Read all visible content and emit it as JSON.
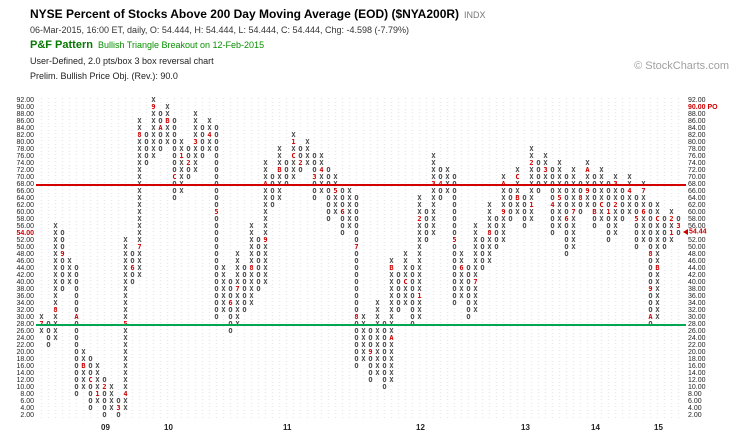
{
  "header": {
    "title": "NYSE Percent of Stocks Above 200 Day Moving Average (EOD) ($NYA200R)",
    "symbol_type": "INDX",
    "quote_line": "06-Mar-2015, 16:00 ET, daily, O: 54.444, H: 54.444, L: 54.444, C: 54.444, Chg: -4.598 (-7.79%)",
    "pattern_label": "P&F Pattern",
    "pattern_text": "Bullish Triangle Breakout on 12-Feb-2015",
    "settings_line": "User-Defined, 2.0 pts/box 3 box reversal chart",
    "objective_line": "Prelim. Bullish Price Obj. (Rev.): 90.0",
    "watermark": "© StockCharts.com"
  },
  "chart_data": {
    "type": "pnf",
    "title": "NYSE Percent of Stocks Above 200 Day Moving Average (EOD) ($NYA200R)",
    "box_size": 2.0,
    "reversal": 3,
    "y_axis": {
      "min": 2,
      "max": 92,
      "step": 2
    },
    "hlines": [
      {
        "name": "resistance-line",
        "value": 68,
        "color": "#d40000"
      },
      {
        "name": "support-line",
        "value": 28,
        "color": "#00a651"
      }
    ],
    "last_price": 54.44,
    "last_price_label": "54.44",
    "price_objective_value": 90,
    "price_objective_label": "90.00 PO",
    "left_highlight_value": 54,
    "x_axis_years": [
      {
        "label": "09",
        "col": 9
      },
      {
        "label": "10",
        "col": 18
      },
      {
        "label": "11",
        "col": 35
      },
      {
        "label": "12",
        "col": 54
      },
      {
        "label": "13",
        "col": 69
      },
      {
        "label": "14",
        "col": 79
      },
      {
        "label": "15",
        "col": 88
      }
    ],
    "columns": [
      {
        "t": "X",
        "from": 26,
        "to": 30,
        "m": {
          "28": "7"
        }
      },
      {
        "t": "O",
        "from": 22,
        "to": 28
      },
      {
        "t": "X",
        "from": 24,
        "to": 56,
        "m": {
          "32": "8"
        }
      },
      {
        "t": "O",
        "from": 38,
        "to": 54,
        "m": {
          "48": "9"
        }
      },
      {
        "t": "X",
        "from": 40,
        "to": 46
      },
      {
        "t": "O",
        "from": 8,
        "to": 44,
        "m": {
          "30": "A"
        }
      },
      {
        "t": "X",
        "from": 10,
        "to": 20,
        "m": {
          "16": "B"
        }
      },
      {
        "t": "O",
        "from": 4,
        "to": 18,
        "m": {
          "12": "C"
        }
      },
      {
        "t": "X",
        "from": 6,
        "to": 16,
        "m": {
          "8": "1"
        }
      },
      {
        "t": "O",
        "from": 2,
        "to": 12,
        "m": {
          "10": "2"
        }
      },
      {
        "t": "X",
        "from": 4,
        "to": 10
      },
      {
        "t": "O",
        "from": 2,
        "to": 6,
        "m": {
          "4": "3"
        }
      },
      {
        "t": "X",
        "from": 4,
        "to": 52,
        "m": {
          "8": "4",
          "28": "5"
        }
      },
      {
        "t": "O",
        "from": 40,
        "to": 48,
        "m": {
          "44": "6"
        }
      },
      {
        "t": "X",
        "from": 42,
        "to": 86,
        "m": {
          "50": "7",
          "82": "8"
        }
      },
      {
        "t": "O",
        "from": 74,
        "to": 82
      },
      {
        "t": "X",
        "from": 76,
        "to": 92,
        "m": {
          "90": "9"
        }
      },
      {
        "t": "O",
        "from": 78,
        "to": 88,
        "m": {
          "84": "A"
        }
      },
      {
        "t": "X",
        "from": 80,
        "to": 90,
        "m": {
          "86": "B"
        }
      },
      {
        "t": "O",
        "from": 64,
        "to": 86,
        "m": {
          "70": "C"
        }
      },
      {
        "t": "X",
        "from": 66,
        "to": 80,
        "m": {
          "76": "1"
        }
      },
      {
        "t": "O",
        "from": 70,
        "to": 78,
        "m": {
          "74": "2"
        }
      },
      {
        "t": "X",
        "from": 72,
        "to": 88,
        "m": {
          "80": "3"
        }
      },
      {
        "t": "O",
        "from": 76,
        "to": 84
      },
      {
        "t": "X",
        "from": 78,
        "to": 86,
        "m": {
          "82": "4"
        }
      },
      {
        "t": "O",
        "from": 30,
        "to": 84,
        "m": {
          "60": "5"
        }
      },
      {
        "t": "X",
        "from": 32,
        "to": 44
      },
      {
        "t": "O",
        "from": 26,
        "to": 40,
        "m": {
          "34": "6"
        }
      },
      {
        "t": "X",
        "from": 28,
        "to": 48,
        "m": {
          "38": "7"
        }
      },
      {
        "t": "O",
        "from": 32,
        "to": 44
      },
      {
        "t": "X",
        "from": 34,
        "to": 56,
        "m": {
          "44": "8"
        }
      },
      {
        "t": "O",
        "from": 38,
        "to": 52
      },
      {
        "t": "X",
        "from": 40,
        "to": 74,
        "m": {
          "52": "9",
          "68": "A"
        }
      },
      {
        "t": "O",
        "from": 62,
        "to": 70
      },
      {
        "t": "X",
        "from": 64,
        "to": 78,
        "m": {
          "72": "B"
        }
      },
      {
        "t": "O",
        "from": 68,
        "to": 74
      },
      {
        "t": "X",
        "from": 70,
        "to": 82,
        "m": {
          "76": "C",
          "80": "1"
        }
      },
      {
        "t": "O",
        "from": 72,
        "to": 78,
        "m": {
          "74": "2"
        }
      },
      {
        "t": "X",
        "from": 74,
        "to": 80
      },
      {
        "t": "O",
        "from": 64,
        "to": 76,
        "m": {
          "70": "3"
        }
      },
      {
        "t": "X",
        "from": 66,
        "to": 76,
        "m": {
          "72": "4"
        }
      },
      {
        "t": "O",
        "from": 58,
        "to": 72
      },
      {
        "t": "X",
        "from": 60,
        "to": 70,
        "m": {
          "66": "5"
        }
      },
      {
        "t": "O",
        "from": 54,
        "to": 66,
        "m": {
          "60": "6"
        }
      },
      {
        "t": "X",
        "from": 56,
        "to": 66
      },
      {
        "t": "O",
        "from": 16,
        "to": 64,
        "m": {
          "50": "7",
          "30": "8"
        }
      },
      {
        "t": "X",
        "from": 18,
        "to": 30
      },
      {
        "t": "O",
        "from": 12,
        "to": 26,
        "m": {
          "20": "9"
        }
      },
      {
        "t": "X",
        "from": 14,
        "to": 34
      },
      {
        "t": "O",
        "from": 10,
        "to": 28
      },
      {
        "t": "X",
        "from": 12,
        "to": 46,
        "m": {
          "24": "A",
          "44": "B"
        }
      },
      {
        "t": "O",
        "from": 32,
        "to": 42
      },
      {
        "t": "X",
        "from": 34,
        "to": 48,
        "m": {
          "40": "C"
        }
      },
      {
        "t": "O",
        "from": 28,
        "to": 44
      },
      {
        "t": "X",
        "from": 30,
        "to": 64,
        "m": {
          "36": "1",
          "58": "2"
        }
      },
      {
        "t": "O",
        "from": 52,
        "to": 60
      },
      {
        "t": "X",
        "from": 54,
        "to": 76,
        "m": {
          "68": "3"
        }
      },
      {
        "t": "O",
        "from": 64,
        "to": 72,
        "m": {
          "68": "4"
        }
      },
      {
        "t": "X",
        "from": 66,
        "to": 72
      },
      {
        "t": "O",
        "from": 34,
        "to": 70,
        "m": {
          "52": "5"
        }
      },
      {
        "t": "X",
        "from": 36,
        "to": 48,
        "m": {
          "44": "6"
        }
      },
      {
        "t": "O",
        "from": 30,
        "to": 44
      },
      {
        "t": "X",
        "from": 32,
        "to": 56,
        "m": {
          "40": "7"
        }
      },
      {
        "t": "O",
        "from": 44,
        "to": 52
      },
      {
        "t": "X",
        "from": 46,
        "to": 62,
        "m": {
          "54": "8"
        }
      },
      {
        "t": "O",
        "from": 50,
        "to": 58
      },
      {
        "t": "X",
        "from": 52,
        "to": 70,
        "m": {
          "60": "9",
          "68": "A"
        }
      },
      {
        "t": "O",
        "from": 58,
        "to": 66
      },
      {
        "t": "X",
        "from": 60,
        "to": 72,
        "m": {
          "64": "B",
          "70": "C"
        }
      },
      {
        "t": "O",
        "from": 56,
        "to": 64
      },
      {
        "t": "X",
        "from": 58,
        "to": 78,
        "m": {
          "62": "1",
          "74": "2"
        }
      },
      {
        "t": "O",
        "from": 66,
        "to": 74
      },
      {
        "t": "X",
        "from": 68,
        "to": 76,
        "m": {
          "72": "3"
        }
      },
      {
        "t": "O",
        "from": 54,
        "to": 72,
        "m": {
          "62": "4"
        }
      },
      {
        "t": "X",
        "from": 56,
        "to": 74,
        "m": {
          "64": "5"
        }
      },
      {
        "t": "O",
        "from": 48,
        "to": 70,
        "m": {
          "58": "6"
        }
      },
      {
        "t": "X",
        "from": 50,
        "to": 72,
        "m": {
          "60": "7"
        }
      },
      {
        "t": "O",
        "from": 60,
        "to": 68,
        "m": {
          "64": "8"
        }
      },
      {
        "t": "X",
        "from": 62,
        "to": 74,
        "m": {
          "66": "9",
          "72": "A"
        }
      },
      {
        "t": "O",
        "from": 56,
        "to": 70,
        "m": {
          "60": "B"
        }
      },
      {
        "t": "X",
        "from": 58,
        "to": 72,
        "m": {
          "62": "C"
        }
      },
      {
        "t": "O",
        "from": 52,
        "to": 68,
        "m": {
          "60": "1"
        }
      },
      {
        "t": "X",
        "from": 54,
        "to": 70,
        "m": {
          "62": "2",
          "68": "3"
        }
      },
      {
        "t": "O",
        "from": 58,
        "to": 66
      },
      {
        "t": "X",
        "from": 60,
        "to": 70,
        "m": {
          "66": "4"
        }
      },
      {
        "t": "O",
        "from": 50,
        "to": 64,
        "m": {
          "58": "5"
        }
      },
      {
        "t": "X",
        "from": 52,
        "to": 68,
        "m": {
          "60": "6",
          "66": "7"
        }
      },
      {
        "t": "O",
        "from": 28,
        "to": 62,
        "m": {
          "48": "8",
          "38": "9",
          "30": "A"
        }
      },
      {
        "t": "X",
        "from": 30,
        "to": 62,
        "m": {
          "44": "B",
          "58": "C"
        }
      },
      {
        "t": "O",
        "from": 50,
        "to": 58
      },
      {
        "t": "X",
        "from": 52,
        "to": 60,
        "m": {
          "54": "1",
          "58": "2"
        }
      },
      {
        "t": "O",
        "from": 54,
        "to": 58,
        "m": {
          "56": "3"
        }
      }
    ]
  }
}
